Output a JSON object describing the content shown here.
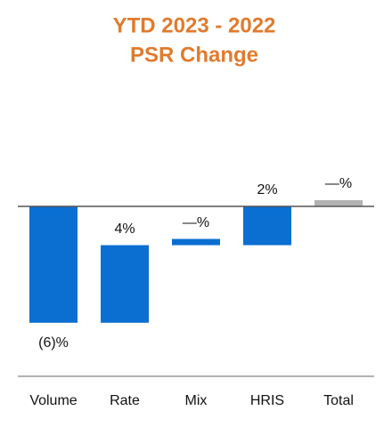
{
  "chart_data": {
    "type": "waterfall",
    "title": "YTD 2023 - 2022",
    "subtitle": "PSR Change",
    "categories": [
      "Volume",
      "Rate",
      "Mix",
      "HRIS",
      "Total"
    ],
    "values": [
      -6,
      4,
      0,
      2,
      0
    ],
    "value_labels": [
      "(6)%",
      "4%",
      "—%",
      "2%",
      "—%"
    ],
    "colors": [
      "#0a6fd1",
      "#0a6fd1",
      "#0a6fd1",
      "#0a6fd1",
      "#b3b3b3"
    ]
  }
}
